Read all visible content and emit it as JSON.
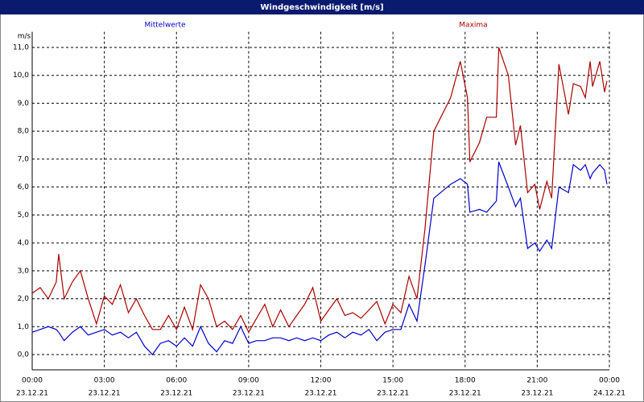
{
  "chart_data": {
    "type": "line",
    "title": "Windgeschwindigkeit [m/s]",
    "y_unit": "m/s",
    "x": [
      0.0,
      0.33,
      0.67,
      1.0,
      1.1,
      1.33,
      1.67,
      2.0,
      2.33,
      2.67,
      3.0,
      3.33,
      3.67,
      4.0,
      4.33,
      4.67,
      5.0,
      5.33,
      5.67,
      6.0,
      6.33,
      6.67,
      7.0,
      7.33,
      7.67,
      8.0,
      8.33,
      8.67,
      9.0,
      9.33,
      9.67,
      10.0,
      10.33,
      10.67,
      11.0,
      11.33,
      11.67,
      12.0,
      12.33,
      12.67,
      13.0,
      13.33,
      13.67,
      14.0,
      14.33,
      14.67,
      15.0,
      15.33,
      15.67,
      16.0,
      16.33,
      16.7,
      17.4,
      17.8,
      18.1,
      18.2,
      18.6,
      18.9,
      19.3,
      19.4,
      19.8,
      20.1,
      20.3,
      20.6,
      20.9,
      21.1,
      21.4,
      21.6,
      21.9,
      22.3,
      22.5,
      22.8,
      23.0,
      23.2,
      23.3,
      23.6,
      23.8,
      23.9
    ],
    "series": [
      {
        "name": "Mittelwerte",
        "color": "#0000cc",
        "values": [
          0.8,
          0.9,
          1.0,
          0.9,
          0.8,
          0.5,
          0.8,
          1.0,
          0.7,
          0.8,
          0.9,
          0.7,
          0.8,
          0.6,
          0.8,
          0.3,
          0.0,
          0.4,
          0.5,
          0.3,
          0.6,
          0.3,
          1.0,
          0.4,
          0.1,
          0.5,
          0.4,
          1.0,
          0.4,
          0.5,
          0.5,
          0.6,
          0.6,
          0.5,
          0.6,
          0.5,
          0.6,
          0.5,
          0.7,
          0.8,
          0.6,
          0.8,
          0.7,
          0.9,
          0.5,
          0.8,
          0.9,
          0.9,
          1.8,
          1.2,
          3.2,
          5.6,
          6.1,
          6.3,
          6.1,
          5.1,
          5.2,
          5.1,
          5.5,
          6.9,
          6.0,
          5.3,
          5.6,
          3.8,
          4.0,
          3.7,
          4.1,
          3.8,
          6.0,
          5.8,
          6.8,
          6.6,
          6.8,
          6.3,
          6.5,
          6.8,
          6.6,
          6.1
        ]
      },
      {
        "name": "Maxima",
        "color": "#aa0000",
        "values": [
          2.2,
          2.4,
          2.0,
          2.6,
          3.6,
          2.0,
          2.6,
          3.0,
          2.0,
          1.1,
          2.1,
          1.8,
          2.5,
          1.5,
          2.0,
          1.4,
          0.9,
          0.9,
          1.4,
          0.9,
          1.7,
          0.9,
          2.5,
          2.0,
          1.0,
          1.2,
          0.9,
          1.4,
          0.8,
          1.3,
          1.8,
          1.0,
          1.6,
          1.0,
          1.4,
          1.8,
          2.4,
          1.2,
          1.6,
          2.0,
          1.4,
          1.5,
          1.3,
          1.6,
          1.9,
          1.1,
          1.8,
          1.5,
          2.8,
          2.0,
          4.5,
          8.0,
          9.2,
          10.5,
          9.2,
          6.9,
          7.6,
          8.5,
          8.5,
          11.0,
          10.0,
          7.5,
          8.2,
          5.8,
          6.1,
          5.2,
          6.2,
          5.6,
          10.4,
          8.6,
          9.7,
          9.6,
          9.2,
          10.5,
          9.6,
          10.5,
          9.4,
          9.8
        ]
      }
    ],
    "xlim": [
      0,
      24
    ],
    "xticks": [
      {
        "value": 0,
        "label": "00:00"
      },
      {
        "value": 3,
        "label": "03:00"
      },
      {
        "value": 6,
        "label": "06:00"
      },
      {
        "value": 9,
        "label": "09:00"
      },
      {
        "value": 12,
        "label": "12:00"
      },
      {
        "value": 15,
        "label": "15:00"
      },
      {
        "value": 18,
        "label": "18:00"
      },
      {
        "value": 21,
        "label": "21:00"
      },
      {
        "value": 24,
        "label": "00:00"
      }
    ],
    "x_tick_dates": [
      "23.12.21",
      "23.12.21",
      "23.12.21",
      "23.12.21",
      "23.12.21",
      "23.12.21",
      "23.12.21",
      "23.12.21",
      "24.12.21"
    ],
    "ylim": [
      -0.5,
      11.5
    ],
    "yticks": [
      {
        "value": 0,
        "label": "0,0"
      },
      {
        "value": 1,
        "label": "1,0"
      },
      {
        "value": 2,
        "label": "2,0"
      },
      {
        "value": 3,
        "label": "3,0"
      },
      {
        "value": 4,
        "label": "4,0"
      },
      {
        "value": 5,
        "label": "5,0"
      },
      {
        "value": 6,
        "label": "6,0"
      },
      {
        "value": 7,
        "label": "7,0"
      },
      {
        "value": 8,
        "label": "8,0"
      },
      {
        "value": 9,
        "label": "9,0"
      },
      {
        "value": 10,
        "label": "10,0"
      },
      {
        "value": 11,
        "label": "11,0"
      }
    ],
    "grid": true
  }
}
